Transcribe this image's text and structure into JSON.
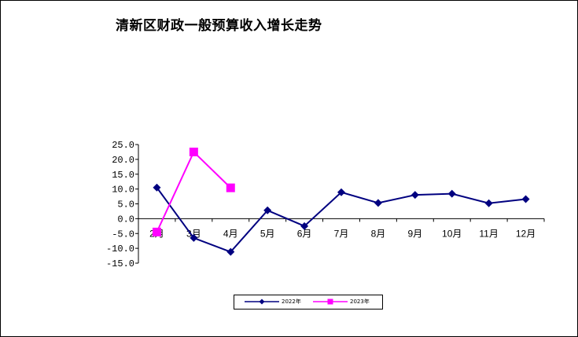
{
  "chart_data": {
    "type": "line",
    "title": "清新区财政一般预算收入增长走势",
    "xlabel": "",
    "ylabel": "",
    "categories": [
      "2月",
      "3月",
      "4月",
      "5月",
      "6月",
      "7月",
      "8月",
      "9月",
      "10月",
      "11月",
      "12月"
    ],
    "y_tick_labels": [
      "25.0",
      "20.0",
      "15.0",
      "10.0",
      "5.0",
      "0.0",
      "-5.0",
      "-10.0",
      "-15.0"
    ],
    "ylim": [
      -15,
      25
    ],
    "grid": false,
    "legend_position": "bottom",
    "series": [
      {
        "name": "2022年",
        "color": "#000080",
        "marker": "diamond",
        "values": [
          10.5,
          -6.5,
          -11.2,
          2.8,
          -2.5,
          8.9,
          5.3,
          8.0,
          8.4,
          5.2,
          6.6
        ]
      },
      {
        "name": "2023年",
        "color": "#FF00FF",
        "marker": "square",
        "values": [
          -4.5,
          22.5,
          10.4,
          null,
          null,
          null,
          null,
          null,
          null,
          null,
          null
        ]
      }
    ]
  }
}
